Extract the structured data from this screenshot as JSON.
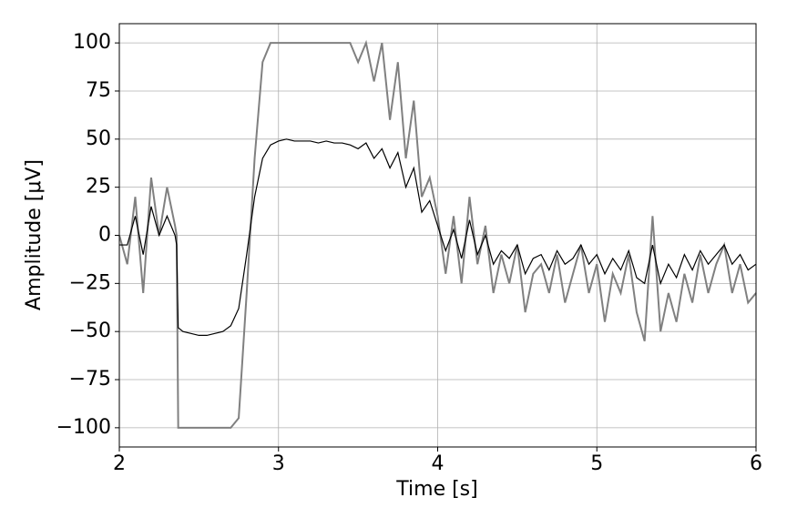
{
  "chart_data": {
    "type": "line",
    "xlabel": "Time [s]",
    "ylabel": "Amplitude [μV]",
    "x": [
      2.0,
      2.05,
      2.1,
      2.15,
      2.2,
      2.25,
      2.3,
      2.35,
      2.36,
      2.37,
      2.4,
      2.45,
      2.5,
      2.55,
      2.6,
      2.65,
      2.7,
      2.75,
      2.8,
      2.85,
      2.9,
      2.95,
      3.0,
      3.05,
      3.1,
      3.15,
      3.2,
      3.25,
      3.3,
      3.35,
      3.4,
      3.45,
      3.5,
      3.55,
      3.6,
      3.65,
      3.7,
      3.75,
      3.8,
      3.85,
      3.9,
      3.95,
      4.0,
      4.05,
      4.1,
      4.15,
      4.2,
      4.25,
      4.3,
      4.35,
      4.4,
      4.45,
      4.5,
      4.55,
      4.6,
      4.65,
      4.7,
      4.75,
      4.8,
      4.85,
      4.9,
      4.95,
      5.0,
      5.05,
      5.1,
      5.15,
      5.2,
      5.25,
      5.3,
      5.35,
      5.4,
      5.45,
      5.5,
      5.55,
      5.6,
      5.65,
      5.7,
      5.75,
      5.8,
      5.85,
      5.9,
      5.95,
      6.0
    ],
    "series": [
      {
        "color": "#808080",
        "values": [
          0,
          -15,
          20,
          -30,
          30,
          0,
          25,
          5,
          0,
          -100,
          -100,
          -100,
          -100,
          -100,
          -100,
          -100,
          -100,
          -95,
          -30,
          40,
          90,
          100,
          100,
          100,
          100,
          100,
          100,
          100,
          100,
          100,
          100,
          100,
          90,
          100,
          80,
          100,
          60,
          90,
          40,
          70,
          20,
          30,
          10,
          -20,
          10,
          -25,
          20,
          -15,
          5,
          -30,
          -10,
          -25,
          -5,
          -40,
          -20,
          -15,
          -30,
          -10,
          -35,
          -20,
          -5,
          -30,
          -15,
          -45,
          -20,
          -30,
          -10,
          -40,
          -55,
          10,
          -50,
          -30,
          -45,
          -20,
          -35,
          -10,
          -30,
          -15,
          -5,
          -30,
          -15,
          -35,
          -30
        ]
      },
      {
        "color": "#000000",
        "values": [
          -5,
          -5,
          10,
          -10,
          15,
          0,
          10,
          0,
          -5,
          -48,
          -50,
          -51,
          -52,
          -52,
          -51,
          -50,
          -47,
          -38,
          -10,
          20,
          40,
          47,
          49,
          50,
          49,
          49,
          49,
          48,
          49,
          48,
          48,
          47,
          45,
          48,
          40,
          45,
          35,
          43,
          25,
          35,
          12,
          18,
          5,
          -8,
          3,
          -12,
          8,
          -10,
          0,
          -15,
          -8,
          -12,
          -5,
          -20,
          -12,
          -10,
          -18,
          -8,
          -15,
          -12,
          -5,
          -15,
          -10,
          -20,
          -12,
          -18,
          -8,
          -22,
          -25,
          -5,
          -25,
          -15,
          -22,
          -10,
          -18,
          -8,
          -15,
          -10,
          -5,
          -15,
          -10,
          -18,
          -15
        ]
      }
    ],
    "xlim": [
      2,
      6
    ],
    "ylim": [
      -110,
      110
    ],
    "xticks": [
      2,
      3,
      4,
      5,
      6
    ],
    "yticks": [
      {
        "value": -100,
        "label": "−100"
      },
      {
        "value": -75,
        "label": "−75"
      },
      {
        "value": -50,
        "label": "−50"
      },
      {
        "value": -25,
        "label": "−25"
      },
      0,
      25,
      50,
      75,
      100
    ],
    "grid": true
  }
}
